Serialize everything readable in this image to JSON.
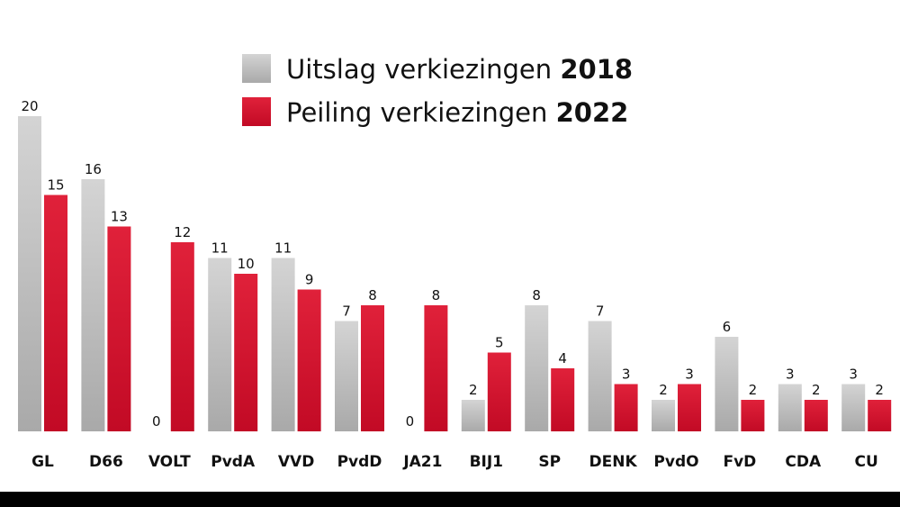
{
  "chart_data": {
    "type": "bar",
    "title": "",
    "xlabel": "",
    "ylabel": "",
    "ylim": [
      0,
      20
    ],
    "grid": false,
    "legend_position": "top-center",
    "categories": [
      "GL",
      "D66",
      "VOLT",
      "PvdA",
      "VVD",
      "PvdD",
      "JA21",
      "BIJ1",
      "SP",
      "DENK",
      "PvdO",
      "FvD",
      "CDA",
      "CU"
    ],
    "series": [
      {
        "name": "Uitslag verkiezingen",
        "name_year": "2018",
        "color_top": "#d4d4d4",
        "color_bottom": "#a9a9a9",
        "values": [
          20,
          16,
          0,
          11,
          11,
          7,
          0,
          2,
          8,
          7,
          2,
          6,
          3,
          3
        ]
      },
      {
        "name": "Peiling verkiezingen",
        "name_year": "2022",
        "color_top": "#e0213a",
        "color_bottom": "#c20a25",
        "values": [
          15,
          13,
          12,
          10,
          9,
          8,
          8,
          5,
          4,
          3,
          3,
          2,
          2,
          2
        ]
      }
    ]
  },
  "colors": {
    "background": "#ffffff",
    "bottom_bar": "#000000",
    "text": "#111111"
  }
}
